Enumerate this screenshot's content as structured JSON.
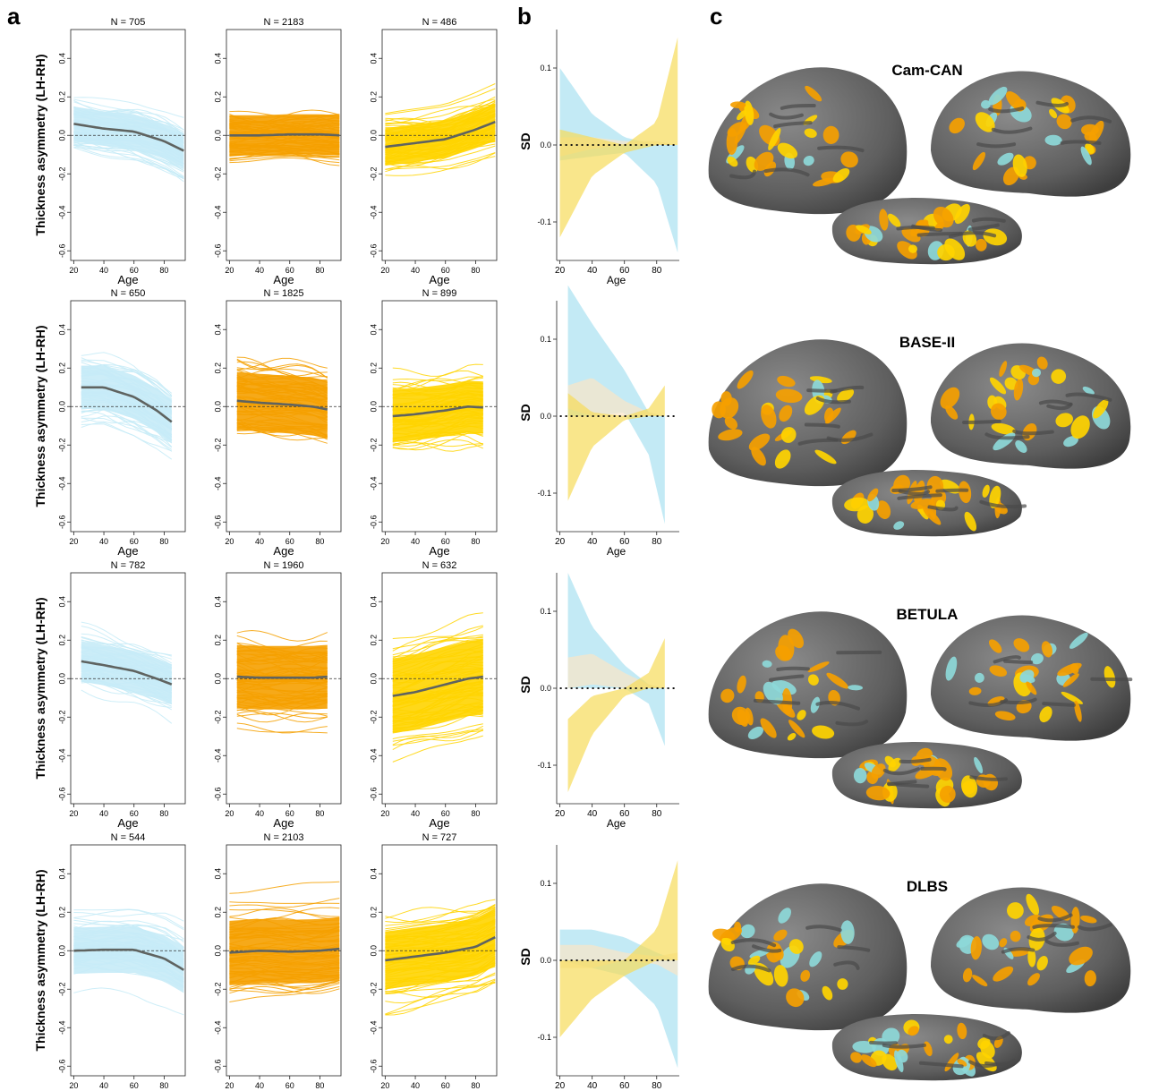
{
  "panel_letters": {
    "a": "a",
    "b": "b",
    "c": "c"
  },
  "colors": {
    "negative": "#c6ebf7",
    "neutral": "#f5a000",
    "positive": "#ffd400",
    "negative_band": "#a9e1f1",
    "neutral_band": "#fbe6c6",
    "positive_band": "#f6dc5a",
    "trend": "#5f6360",
    "brain_gray": "#6b6b6b",
    "brain_dark": "#4a4a4a",
    "brain_cyan": "#8dd8d8"
  },
  "a_common": {
    "ylabel": "Thickness asymmetry (LH-RH)",
    "xlabel": "Age",
    "yticks": [
      "0.4",
      "0.2",
      "0.0",
      "-0.2",
      "-0.4",
      "-0.6"
    ],
    "xticks": [
      "20",
      "40",
      "60",
      "80"
    ]
  },
  "b_common": {
    "ylabel": "SD",
    "xlabel": "Age",
    "yticks": [
      "0.1",
      "0.0",
      "-0.1"
    ],
    "xticks": [
      "20",
      "40",
      "60",
      "80"
    ]
  },
  "rows": [
    {
      "cohort": "Cam-CAN",
      "n": [
        "N =  705",
        "N =  2183",
        "N =  486"
      ]
    },
    {
      "cohort": "BASE-II",
      "n": [
        "N =  650",
        "N =  1825",
        "N =  899"
      ]
    },
    {
      "cohort": "BETULA",
      "n": [
        "N =  782",
        "N =  1960",
        "N =  632"
      ]
    },
    {
      "cohort": "DLBS",
      "n": [
        "N =  544",
        "N =  2103",
        "N =  727"
      ]
    }
  ],
  "chart_data": [
    {
      "type": "line",
      "panel": "a",
      "row": 1,
      "title": "N =  705",
      "color": "negative",
      "xlabel": "Age",
      "ylabel": "Thickness asymmetry (LH-RH)",
      "xlim": [
        18,
        94
      ],
      "ylim": [
        -0.65,
        0.55
      ],
      "series": [
        {
          "x": [
            20,
            40,
            60,
            80,
            93
          ],
          "y": [
            0.06,
            0.035,
            0.02,
            -0.03,
            -0.08
          ]
        }
      ],
      "spread": {
        "center": 0.07,
        "half_width": 0.12,
        "x_range": [
          20,
          93
        ]
      }
    },
    {
      "type": "line",
      "panel": "a",
      "row": 1,
      "title": "N =  2183",
      "color": "neutral",
      "xlabel": "Age",
      "xlim": [
        18,
        94
      ],
      "ylim": [
        -0.65,
        0.55
      ],
      "series": [
        {
          "x": [
            20,
            40,
            60,
            80,
            93
          ],
          "y": [
            0.0,
            0.0,
            0.005,
            0.005,
            0.0
          ]
        }
      ],
      "spread": {
        "center": 0.0,
        "half_width": 0.14,
        "x_range": [
          20,
          93
        ]
      }
    },
    {
      "type": "line",
      "panel": "a",
      "row": 1,
      "title": "N =  486",
      "color": "positive",
      "xlabel": "Age",
      "xlim": [
        18,
        94
      ],
      "ylim": [
        -0.65,
        0.55
      ],
      "series": [
        {
          "x": [
            20,
            40,
            60,
            80,
            93
          ],
          "y": [
            -0.06,
            -0.04,
            -0.02,
            0.03,
            0.07
          ]
        }
      ],
      "spread": {
        "center": 0.0,
        "half_width": 0.13,
        "x_range": [
          20,
          93
        ]
      }
    },
    {
      "type": "line",
      "panel": "a",
      "row": 2,
      "title": "N =  650",
      "color": "negative",
      "xlabel": "Age",
      "ylabel": "Thickness asymmetry (LH-RH)",
      "xlim": [
        18,
        94
      ],
      "ylim": [
        -0.65,
        0.55
      ],
      "series": [
        {
          "x": [
            25,
            40,
            60,
            75,
            85
          ],
          "y": [
            0.1,
            0.1,
            0.05,
            -0.02,
            -0.08
          ]
        }
      ],
      "spread": {
        "center": 0.08,
        "half_width": 0.15,
        "x_range": [
          25,
          85
        ]
      }
    },
    {
      "type": "line",
      "panel": "a",
      "row": 2,
      "title": "N =  1825",
      "color": "neutral",
      "xlabel": "Age",
      "xlim": [
        18,
        94
      ],
      "ylim": [
        -0.65,
        0.55
      ],
      "series": [
        {
          "x": [
            25,
            40,
            60,
            75,
            85
          ],
          "y": [
            0.03,
            0.02,
            0.01,
            0.0,
            -0.015
          ]
        }
      ],
      "spread": {
        "center": 0.0,
        "half_width": 0.2,
        "x_range": [
          25,
          85
        ]
      }
    },
    {
      "type": "line",
      "panel": "a",
      "row": 2,
      "title": "N =  899",
      "color": "positive",
      "xlabel": "Age",
      "xlim": [
        18,
        94
      ],
      "ylim": [
        -0.65,
        0.55
      ],
      "series": [
        {
          "x": [
            25,
            40,
            60,
            75,
            85
          ],
          "y": [
            -0.05,
            -0.04,
            -0.02,
            0.0,
            -0.005
          ]
        }
      ],
      "spread": {
        "center": -0.04,
        "half_width": 0.18,
        "x_range": [
          25,
          85
        ]
      }
    },
    {
      "type": "line",
      "panel": "a",
      "row": 3,
      "title": "N =  782",
      "color": "negative",
      "xlabel": "Age",
      "ylabel": "Thickness asymmetry (LH-RH)",
      "xlim": [
        18,
        94
      ],
      "ylim": [
        -0.65,
        0.55
      ],
      "series": [
        {
          "x": [
            25,
            40,
            60,
            75,
            85
          ],
          "y": [
            0.09,
            0.07,
            0.04,
            0.0,
            -0.03
          ]
        }
      ],
      "spread": {
        "center": 0.04,
        "half_width": 0.14,
        "x_range": [
          25,
          85
        ]
      }
    },
    {
      "type": "line",
      "panel": "a",
      "row": 3,
      "title": "N =  1960",
      "color": "neutral",
      "xlabel": "Age",
      "xlim": [
        18,
        94
      ],
      "ylim": [
        -0.65,
        0.55
      ],
      "series": [
        {
          "x": [
            25,
            40,
            60,
            75,
            85
          ],
          "y": [
            0.01,
            0.005,
            0.005,
            0.005,
            0.01
          ]
        }
      ],
      "spread": {
        "center": 0.0,
        "half_width": 0.22,
        "x_range": [
          25,
          85
        ]
      }
    },
    {
      "type": "line",
      "panel": "a",
      "row": 3,
      "title": "N =  632",
      "color": "positive",
      "xlabel": "Age",
      "xlim": [
        18,
        94
      ],
      "ylim": [
        -0.65,
        0.55
      ],
      "series": [
        {
          "x": [
            25,
            40,
            60,
            75,
            85
          ],
          "y": [
            -0.09,
            -0.07,
            -0.03,
            0.0,
            0.01
          ]
        }
      ],
      "spread": {
        "center": -0.05,
        "half_width": 0.26,
        "x_range": [
          25,
          85
        ]
      }
    },
    {
      "type": "line",
      "panel": "a",
      "row": 4,
      "title": "N =  544",
      "color": "negative",
      "xlabel": "Age",
      "ylabel": "Thickness asymmetry (LH-RH)",
      "xlim": [
        18,
        94
      ],
      "ylim": [
        -0.65,
        0.55
      ],
      "series": [
        {
          "x": [
            20,
            40,
            60,
            80,
            93
          ],
          "y": [
            0.0,
            0.005,
            0.005,
            -0.04,
            -0.1
          ]
        }
      ],
      "spread": {
        "center": -0.01,
        "half_width": 0.16,
        "x_range": [
          20,
          93
        ]
      }
    },
    {
      "type": "line",
      "panel": "a",
      "row": 4,
      "title": "N =  2103",
      "color": "neutral",
      "xlabel": "Age",
      "xlim": [
        18,
        94
      ],
      "ylim": [
        -0.65,
        0.55
      ],
      "series": [
        {
          "x": [
            20,
            40,
            60,
            80,
            93
          ],
          "y": [
            -0.01,
            0.0,
            -0.005,
            0.0,
            0.01
          ]
        }
      ],
      "spread": {
        "center": 0.0,
        "half_width": 0.22,
        "x_range": [
          20,
          93
        ]
      }
    },
    {
      "type": "line",
      "panel": "a",
      "row": 4,
      "title": "N =  727",
      "color": "positive",
      "xlabel": "Age",
      "xlim": [
        18,
        94
      ],
      "ylim": [
        -0.65,
        0.55
      ],
      "series": [
        {
          "x": [
            20,
            40,
            60,
            80,
            93
          ],
          "y": [
            -0.05,
            -0.03,
            -0.01,
            0.02,
            0.07
          ]
        }
      ],
      "spread": {
        "center": 0.0,
        "half_width": 0.2,
        "x_range": [
          20,
          93
        ]
      }
    },
    {
      "type": "area",
      "panel": "b",
      "row": 1,
      "xlabel": "Age",
      "ylabel": "SD",
      "xlim": [
        18,
        94
      ],
      "ylim": [
        -0.15,
        0.15
      ],
      "series": [
        {
          "color": "negative",
          "x": [
            20,
            40,
            60,
            80,
            93
          ],
          "lower": [
            -0.02,
            -0.015,
            -0.01,
            -0.05,
            -0.14
          ],
          "upper": [
            0.1,
            0.04,
            0.01,
            0.0,
            0.0
          ]
        },
        {
          "color": "neutral",
          "x": [
            20,
            40,
            60,
            80,
            93
          ],
          "lower": [
            -0.015,
            -0.005,
            0.0,
            0.0,
            0.0
          ],
          "upper": [
            0.01,
            0.01,
            0.005,
            0.005,
            0.0
          ]
        },
        {
          "color": "positive",
          "x": [
            20,
            40,
            60,
            80,
            93
          ],
          "lower": [
            -0.12,
            -0.04,
            -0.01,
            0.0,
            0.0
          ],
          "upper": [
            0.02,
            0.01,
            0.0,
            0.03,
            0.14
          ]
        }
      ]
    },
    {
      "type": "area",
      "panel": "b",
      "row": 2,
      "xlabel": "Age",
      "ylabel": "SD",
      "xlim": [
        18,
        94
      ],
      "ylim": [
        -0.15,
        0.15
      ],
      "series": [
        {
          "color": "negative",
          "x": [
            25,
            40,
            60,
            75,
            85
          ],
          "lower": [
            0.0,
            0.0,
            0.005,
            -0.05,
            -0.14
          ],
          "upper": [
            0.17,
            0.12,
            0.06,
            0.005,
            0.0
          ]
        },
        {
          "color": "neutral",
          "x": [
            25,
            40,
            60,
            75,
            85
          ],
          "lower": [
            0.01,
            0.0,
            0.0,
            0.0,
            0.0
          ],
          "upper": [
            0.04,
            0.05,
            0.02,
            0.005,
            0.0
          ]
        },
        {
          "color": "positive",
          "x": [
            25,
            40,
            60,
            75,
            85
          ],
          "lower": [
            -0.11,
            -0.04,
            -0.005,
            0.0,
            0.0
          ],
          "upper": [
            0.03,
            0.005,
            0.0,
            0.01,
            0.04
          ]
        }
      ]
    },
    {
      "type": "area",
      "panel": "b",
      "row": 3,
      "xlabel": "Age",
      "ylabel": "SD",
      "xlim": [
        18,
        94
      ],
      "ylim": [
        -0.15,
        0.15
      ],
      "series": [
        {
          "color": "negative",
          "x": [
            25,
            40,
            60,
            75,
            85
          ],
          "lower": [
            0.0,
            0.0,
            0.0,
            -0.02,
            -0.075
          ],
          "upper": [
            0.15,
            0.08,
            0.03,
            0.005,
            0.0
          ]
        },
        {
          "color": "neutral",
          "x": [
            25,
            40,
            60,
            75,
            85
          ],
          "lower": [
            0.0,
            0.005,
            0.0,
            0.0,
            0.0
          ],
          "upper": [
            0.04,
            0.045,
            0.02,
            0.005,
            0.0
          ]
        },
        {
          "color": "positive",
          "x": [
            25,
            40,
            60,
            75,
            85
          ],
          "lower": [
            -0.135,
            -0.06,
            -0.01,
            0.0,
            0.0
          ],
          "upper": [
            -0.04,
            -0.01,
            0.0,
            0.02,
            0.065
          ]
        }
      ]
    },
    {
      "type": "area",
      "panel": "b",
      "row": 4,
      "xlabel": "Age",
      "ylabel": "SD",
      "xlim": [
        18,
        94
      ],
      "ylim": [
        -0.15,
        0.15
      ],
      "series": [
        {
          "color": "negative",
          "x": [
            20,
            40,
            60,
            80,
            93
          ],
          "lower": [
            0.0,
            -0.01,
            -0.02,
            -0.06,
            -0.14
          ],
          "upper": [
            0.04,
            0.04,
            0.03,
            0.01,
            0.0
          ]
        },
        {
          "color": "neutral",
          "x": [
            20,
            40,
            60,
            80,
            93
          ],
          "lower": [
            -0.01,
            -0.01,
            0.0,
            -0.005,
            -0.02
          ],
          "upper": [
            0.02,
            0.02,
            0.01,
            0.005,
            0.01
          ]
        },
        {
          "color": "positive",
          "x": [
            20,
            40,
            60,
            80,
            93
          ],
          "lower": [
            -0.1,
            -0.05,
            -0.02,
            0.0,
            0.0
          ],
          "upper": [
            0.0,
            0.0,
            0.0,
            0.04,
            0.13
          ]
        }
      ]
    }
  ]
}
